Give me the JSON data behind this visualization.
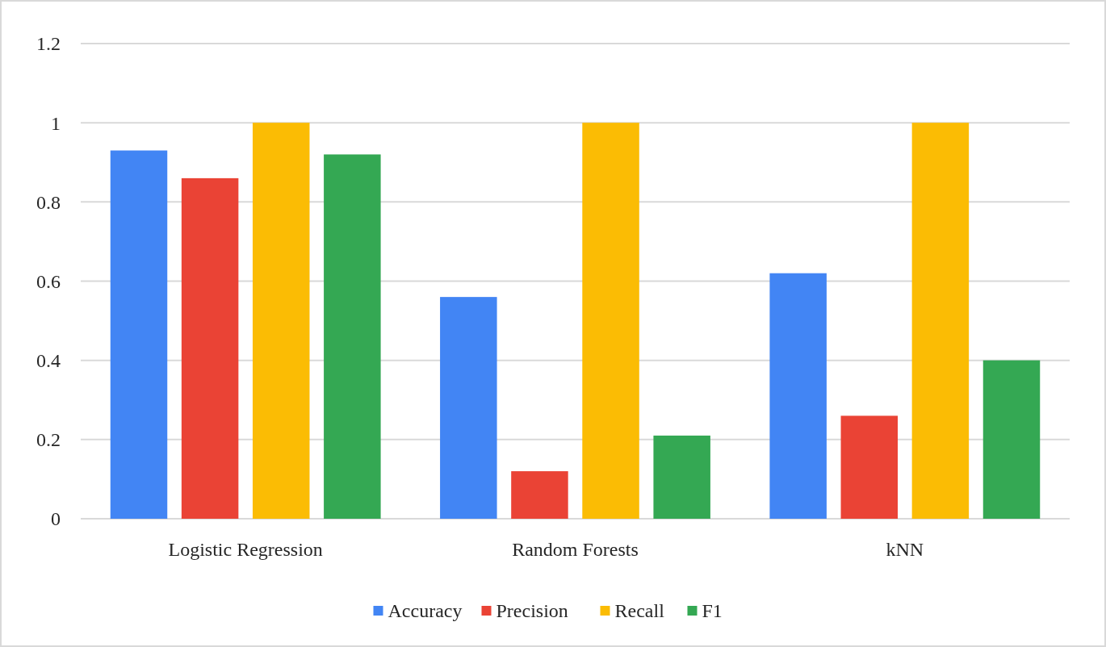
{
  "chart_data": {
    "type": "bar",
    "categories": [
      "Logistic Regression",
      "Random Forests",
      "kNN"
    ],
    "series": [
      {
        "name": "Accuracy",
        "color": "#4285f4",
        "values": [
          0.93,
          0.56,
          0.62
        ]
      },
      {
        "name": "Precision",
        "color": "#ea4335",
        "values": [
          0.86,
          0.12,
          0.26
        ]
      },
      {
        "name": "Recall",
        "color": "#fbbc04",
        "values": [
          1,
          1,
          1
        ]
      },
      {
        "name": "F1",
        "color": "#34a853",
        "values": [
          0.92,
          0.21,
          0.4
        ]
      }
    ],
    "ylim": [
      0,
      1.2
    ],
    "yticks": [
      0,
      0.2,
      0.4,
      0.6,
      0.8,
      1,
      1.2
    ],
    "grid": "y",
    "legend": "bottom"
  }
}
